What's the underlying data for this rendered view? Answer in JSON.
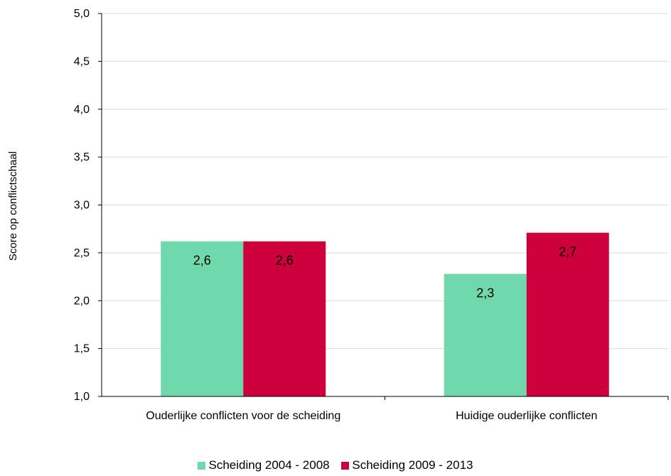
{
  "chart_data": {
    "type": "bar",
    "categories": [
      "Ouderlijke conflicten voor de scheiding",
      "Huidige ouderlijke conflicten"
    ],
    "series": [
      {
        "name": "Scheiding 2004 - 2008",
        "color": "#6fd8ad",
        "values": [
          2.62,
          2.28
        ],
        "labels": [
          "2,6",
          "2,3"
        ]
      },
      {
        "name": "Scheiding 2009 - 2013",
        "color": "#cc003c",
        "values": [
          2.62,
          2.71
        ],
        "labels": [
          "2,6",
          "2,7"
        ]
      }
    ],
    "ylabel": "Score op conflictschaal",
    "xlabel": "",
    "ylim": [
      1.0,
      5.0
    ],
    "yticks": [
      1.0,
      1.5,
      2.0,
      2.5,
      3.0,
      3.5,
      4.0,
      4.5,
      5.0
    ],
    "ytick_labels": [
      "1,0",
      "1,5",
      "2,0",
      "2,5",
      "3,0",
      "3,5",
      "4,0",
      "4,5",
      "5,0"
    ],
    "grid": true,
    "legend_position": "bottom",
    "gridline_color": "#d9d9d9"
  }
}
